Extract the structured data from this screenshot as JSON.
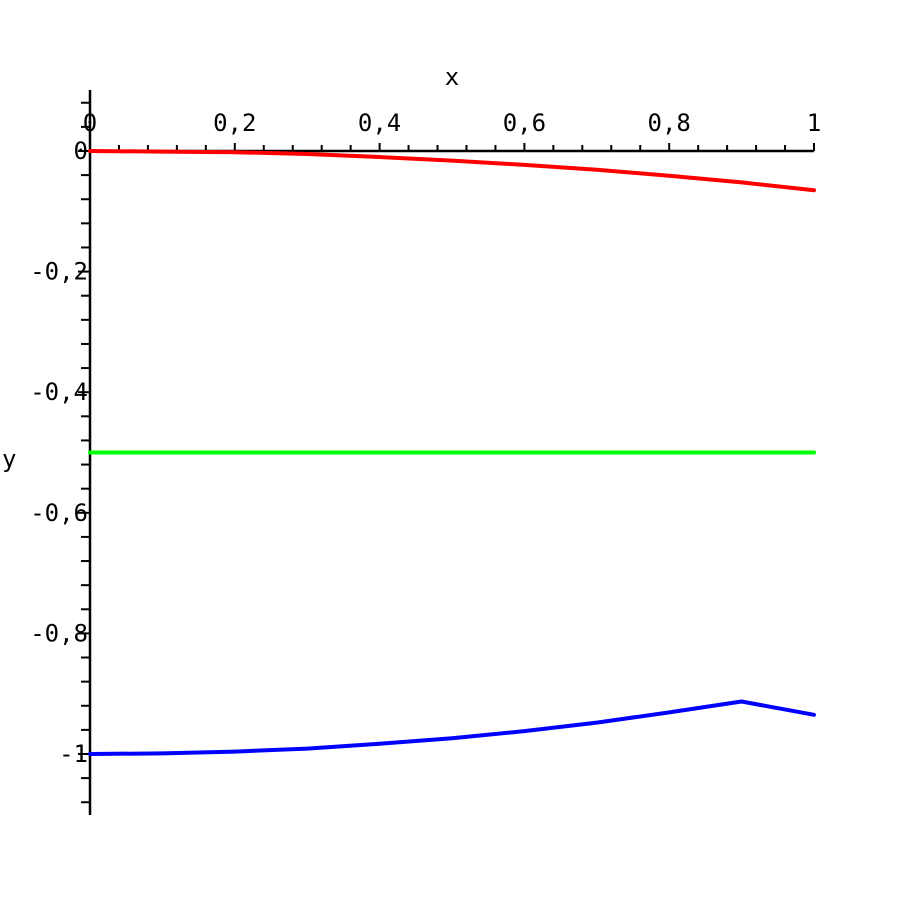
{
  "chart_data": {
    "type": "line",
    "xlabel": "x",
    "ylabel": "y",
    "xlim": [
      0,
      1
    ],
    "ylim": [
      -1.1,
      0.1
    ],
    "xticks": [
      {
        "v": 0,
        "label": "0"
      },
      {
        "v": 0.2,
        "label": "0,2"
      },
      {
        "v": 0.4,
        "label": "0,4"
      },
      {
        "v": 0.6,
        "label": "0,6"
      },
      {
        "v": 0.8,
        "label": "0,8"
      },
      {
        "v": 1,
        "label": "1"
      }
    ],
    "yticks": [
      {
        "v": 0,
        "label": "0"
      },
      {
        "v": -0.2,
        "label": "-0,2"
      },
      {
        "v": -0.4,
        "label": "-0,4"
      },
      {
        "v": -0.6,
        "label": "-0,6"
      },
      {
        "v": -0.8,
        "label": "-0,8"
      },
      {
        "v": -1,
        "label": "-1"
      }
    ],
    "grid": false,
    "series": [
      {
        "color": "#ff0000",
        "x": [
          0,
          0.1,
          0.2,
          0.3,
          0.4,
          0.5,
          0.6,
          0.7,
          0.8,
          0.9,
          1.0
        ],
        "y": [
          0,
          -0.001,
          -0.002,
          -0.005,
          -0.01,
          -0.016,
          -0.023,
          -0.031,
          -0.041,
          -0.052,
          -0.065
        ]
      },
      {
        "color": "#00ff00",
        "x": [
          0,
          1
        ],
        "y": [
          -0.5,
          -0.5
        ]
      },
      {
        "color": "#0000ff",
        "x": [
          0,
          0.1,
          0.2,
          0.3,
          0.4,
          0.5,
          0.6,
          0.7,
          0.8,
          0.9,
          1.0
        ],
        "y": [
          -1.0,
          -0.999,
          -0.996,
          -0.991,
          -0.983,
          -0.974,
          -0.962,
          -0.948,
          -0.931,
          -0.913,
          -0.935
        ]
      }
    ]
  }
}
